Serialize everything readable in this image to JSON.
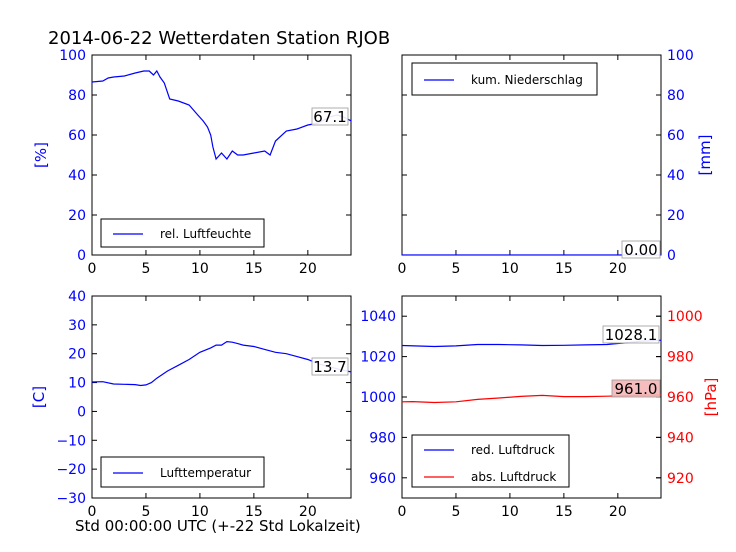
{
  "title": "2014-06-22 Wetterdaten Station RJOB",
  "xlabel": "Std 00:00:00 UTC (+-22 Std Lokalzeit)",
  "colors": {
    "blue": "#0000ff",
    "red": "#ff0000",
    "annot_bg": "#ffffff",
    "annot_red_bg": "#f4b6b6"
  },
  "chart_data": [
    {
      "id": "humidity",
      "type": "line",
      "xlim": [
        0,
        24
      ],
      "ylim": [
        0,
        100
      ],
      "xticks": [
        0,
        5,
        10,
        15,
        20
      ],
      "yticks": [
        0,
        20,
        40,
        60,
        80,
        100
      ],
      "ylabel": "[%]",
      "ylabel_side": "left",
      "legend_placement": "lower-left",
      "annotation": "67.1",
      "series": [
        {
          "name": "rel. Luftfeuchte",
          "color": "#0000ff",
          "x": [
            0,
            1,
            1.5,
            2,
            3,
            4,
            4.8,
            5.3,
            5.7,
            6,
            6.3,
            6.7,
            7.2,
            8,
            9,
            9.8,
            10.3,
            10.7,
            11,
            11.2,
            11.5,
            12,
            12.5,
            13,
            13.5,
            14,
            15,
            16,
            16.5,
            17,
            18,
            19,
            20,
            21,
            22,
            22.7,
            23.3,
            24
          ],
          "y": [
            86.5,
            87,
            88.5,
            89,
            89.5,
            91,
            92,
            92,
            90,
            92,
            89,
            86,
            78,
            77,
            75,
            70,
            67,
            64,
            60,
            54,
            48,
            51,
            48,
            52,
            50,
            50,
            51,
            52,
            50,
            57,
            62,
            63,
            65,
            66,
            69,
            70,
            69,
            67.1
          ]
        }
      ]
    },
    {
      "id": "precip",
      "type": "line",
      "xlim": [
        0,
        24
      ],
      "ylim": [
        0,
        100
      ],
      "xticks": [
        0,
        5,
        10,
        15,
        20
      ],
      "yticks": [
        0,
        20,
        40,
        60,
        80,
        100
      ],
      "ylabel": "[mm]",
      "ylabel_side": "right",
      "legend_placement": "upper-left",
      "annotation": "0.00",
      "series": [
        {
          "name": "kum. Niederschlag",
          "color": "#0000ff",
          "x": [
            0,
            24
          ],
          "y": [
            0,
            0
          ]
        }
      ]
    },
    {
      "id": "temperature",
      "type": "line",
      "xlim": [
        0,
        24
      ],
      "ylim": [
        -30,
        40
      ],
      "xticks": [
        0,
        5,
        10,
        15,
        20
      ],
      "yticks": [
        -30,
        -20,
        -10,
        0,
        10,
        20,
        30,
        40
      ],
      "ylabel": "[C]",
      "ylabel_side": "left",
      "legend_placement": "lower-left",
      "annotation": "13.7",
      "series": [
        {
          "name": "Lufttemperatur",
          "color": "#0000ff",
          "x": [
            0,
            1,
            2,
            3,
            4,
            4.5,
            5,
            5.5,
            6,
            7,
            8,
            9,
            10,
            11,
            11.5,
            12,
            12.5,
            13,
            13.5,
            14,
            15,
            16,
            17,
            18,
            19,
            20,
            21,
            22,
            23,
            24
          ],
          "y": [
            10.2,
            10.3,
            9.5,
            9.4,
            9.3,
            9.0,
            9.2,
            10,
            11.5,
            14,
            16,
            18,
            20.5,
            22,
            23,
            23,
            24.2,
            24,
            23.5,
            23,
            22.5,
            21.5,
            20.5,
            20,
            19,
            18,
            16.5,
            15.5,
            14.5,
            13.7
          ]
        }
      ]
    },
    {
      "id": "pressure",
      "type": "line",
      "xlim": [
        0,
        24
      ],
      "ylim": [
        950,
        1050
      ],
      "xticks": [
        0,
        5,
        10,
        15,
        20
      ],
      "yticks": [
        960,
        980,
        1000,
        1020,
        1040
      ],
      "ylim_right": [
        910,
        1010
      ],
      "yticks_right": [
        920,
        940,
        960,
        980,
        1000
      ],
      "ylabel_right": "[hPa]",
      "legend_placement": "lower-left",
      "annotations": [
        "1028.1",
        "961.0"
      ],
      "series": [
        {
          "name": "red. Luftdruck",
          "color": "#0000ff",
          "axis": "left",
          "x": [
            0,
            3,
            5,
            7,
            9,
            11,
            13,
            15,
            17,
            19,
            21,
            22,
            24
          ],
          "y": [
            1025.5,
            1025,
            1025.3,
            1026,
            1026,
            1025.8,
            1025.5,
            1025.6,
            1025.8,
            1026,
            1027,
            1027.5,
            1028.1
          ]
        },
        {
          "name": "abs. Luftdruck",
          "color": "#ff0000",
          "axis": "right",
          "x": [
            0,
            1,
            3,
            5,
            7,
            9,
            11,
            13,
            15,
            17,
            19,
            21,
            22,
            24
          ],
          "y": [
            957.6,
            957.7,
            957.3,
            957.6,
            958.8,
            959.5,
            960.3,
            960.8,
            960.2,
            960.2,
            960.4,
            960.7,
            960.9,
            961.0
          ]
        }
      ]
    }
  ]
}
